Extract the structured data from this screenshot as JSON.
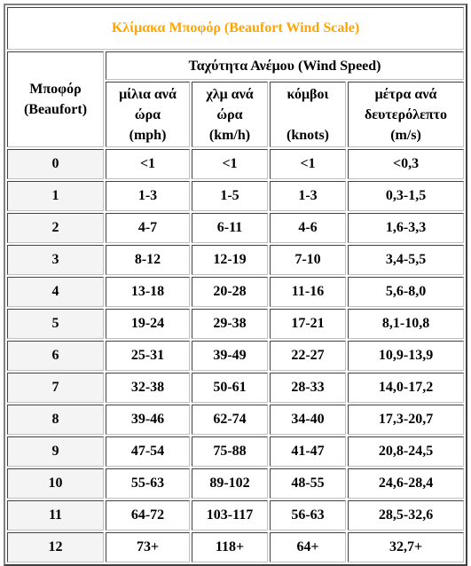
{
  "title": "Κλίμακα Μποφόρ (Beaufort Wind Scale)",
  "header": {
    "beaufort_line1": "Μποφόρ",
    "beaufort_line2": "(Beaufort)",
    "speed": "Ταχύτητα Ανέμου (Wind Speed)",
    "units": [
      {
        "line1": "μίλια ανά",
        "line2": "ώρα",
        "line3": "(mph)"
      },
      {
        "line1": "χλμ ανά",
        "line2": "ώρα",
        "line3": "(km/h)"
      },
      {
        "line1": "κόμβοι",
        "line2": "",
        "line3": "(knots)"
      },
      {
        "line1": "μέτρα ανά",
        "line2": "δευτερόλεπτο",
        "line3": "(m/s)"
      }
    ]
  },
  "rows": [
    {
      "force": "0",
      "mph": "<1",
      "kmh": "<1",
      "knots": "<1",
      "ms": "<0,3"
    },
    {
      "force": "1",
      "mph": "1-3",
      "kmh": "1-5",
      "knots": "1-3",
      "ms": "0,3-1,5"
    },
    {
      "force": "2",
      "mph": "4-7",
      "kmh": "6-11",
      "knots": "4-6",
      "ms": "1,6-3,3"
    },
    {
      "force": "3",
      "mph": "8-12",
      "kmh": "12-19",
      "knots": "7-10",
      "ms": "3,4-5,5"
    },
    {
      "force": "4",
      "mph": "13-18",
      "kmh": "20-28",
      "knots": "11-16",
      "ms": "5,6-8,0"
    },
    {
      "force": "5",
      "mph": "19-24",
      "kmh": "29-38",
      "knots": "17-21",
      "ms": "8,1-10,8"
    },
    {
      "force": "6",
      "mph": "25-31",
      "kmh": "39-49",
      "knots": "22-27",
      "ms": "10,9-13,9"
    },
    {
      "force": "7",
      "mph": "32-38",
      "kmh": "50-61",
      "knots": "28-33",
      "ms": "14,0-17,2"
    },
    {
      "force": "8",
      "mph": "39-46",
      "kmh": "62-74",
      "knots": "34-40",
      "ms": "17,3-20,7"
    },
    {
      "force": "9",
      "mph": "47-54",
      "kmh": "75-88",
      "knots": "41-47",
      "ms": "20,8-24,5"
    },
    {
      "force": "10",
      "mph": "55-63",
      "kmh": "89-102",
      "knots": "48-55",
      "ms": "24,6-28,4"
    },
    {
      "force": "11",
      "mph": "64-72",
      "kmh": "103-117",
      "knots": "56-63",
      "ms": "28,5-32,6"
    },
    {
      "force": "12",
      "mph": "73+",
      "kmh": "118+",
      "knots": "64+",
      "ms": "32,7+"
    }
  ],
  "colors": {
    "title": "#ffa500"
  }
}
